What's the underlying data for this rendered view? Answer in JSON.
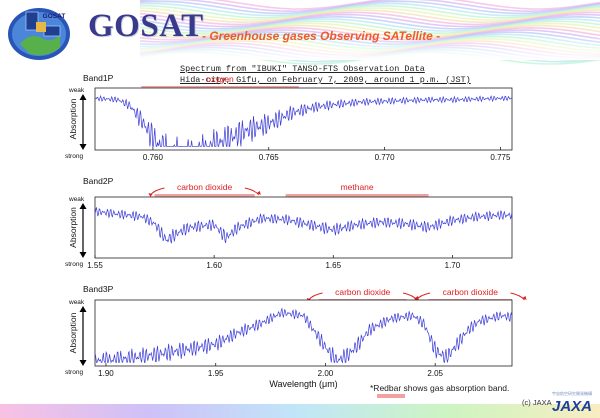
{
  "header": {
    "title": "GOSAT",
    "subtitle": "- Greenhouse gases Observing SATellite -",
    "badge_text": "GOSAT",
    "observation_line1": "Spectrum from \"IBUKI\" TANSO-FTS Observation Data",
    "observation_line2": "Hida-city, Gifu, on February 7, 2009, around 1 p.m. (JST)"
  },
  "footer": {
    "note": "*Redbar shows gas absorption band.",
    "copyright": "(c) JAXA",
    "logo": "JAXA",
    "logo_caption": "宇宙航空研究開発機構"
  },
  "colors": {
    "spectrum": "#3b3bd6",
    "absorption_bar": "#f2a0a0",
    "annotation": "#e02020",
    "title": "#3a3a8c",
    "subtitle": "#f05a28"
  },
  "chart_data": [
    {
      "type": "line",
      "title": "Band1P",
      "ylabel": "Absorption",
      "y_top_label": "weak",
      "y_bottom_label": "strong",
      "xlim": [
        0.7575,
        0.7755
      ],
      "x_ticks": [
        "0.760",
        "0.765",
        "0.770",
        "0.775"
      ],
      "x_tick_values": [
        0.76,
        0.765,
        0.77,
        0.775
      ],
      "grid": false,
      "absorption_bands": [
        {
          "label": "oxygen",
          "range": [
            0.7595,
            0.7663
          ],
          "arrows": false
        }
      ],
      "series": [
        {
          "x": [
            0.7575,
            0.7585,
            0.759,
            0.7595,
            0.76,
            0.7605,
            0.761,
            0.7615,
            0.762,
            0.7625,
            0.763,
            0.764,
            0.765,
            0.766,
            0.767,
            0.768,
            0.769,
            0.77,
            0.771,
            0.772,
            0.773,
            0.774,
            0.775,
            0.7755
          ],
          "values": [
            0.9,
            0.88,
            0.8,
            0.6,
            0.35,
            0.15,
            0.05,
            0.03,
            0.08,
            0.2,
            0.3,
            0.45,
            0.55,
            0.7,
            0.78,
            0.82,
            0.85,
            0.86,
            0.87,
            0.88,
            0.88,
            0.89,
            0.9,
            0.9
          ]
        }
      ]
    },
    {
      "type": "line",
      "title": "Band2P",
      "ylabel": "Absorption",
      "y_top_label": "weak",
      "y_bottom_label": "strong",
      "xlim": [
        1.55,
        1.725
      ],
      "x_ticks": [
        "1.55",
        "1.60",
        "1.65",
        "1.70"
      ],
      "x_tick_values": [
        1.55,
        1.6,
        1.65,
        1.7
      ],
      "grid": false,
      "absorption_bands": [
        {
          "label": "carbon dioxide",
          "range": [
            1.575,
            1.617
          ],
          "arrows": true
        },
        {
          "label": "methane",
          "range": [
            1.63,
            1.69
          ],
          "arrows": false
        }
      ],
      "series": [
        {
          "x": [
            1.55,
            1.56,
            1.57,
            1.575,
            1.58,
            1.585,
            1.59,
            1.6,
            1.605,
            1.61,
            1.62,
            1.63,
            1.64,
            1.65,
            1.66,
            1.67,
            1.68,
            1.69,
            1.7,
            1.71,
            1.72,
            1.725
          ],
          "values": [
            0.85,
            0.8,
            0.75,
            0.62,
            0.3,
            0.45,
            0.55,
            0.6,
            0.35,
            0.55,
            0.72,
            0.7,
            0.6,
            0.5,
            0.6,
            0.65,
            0.62,
            0.55,
            0.68,
            0.75,
            0.78,
            0.78
          ]
        }
      ]
    },
    {
      "type": "line",
      "title": "Band3P",
      "ylabel": "Absorption",
      "y_top_label": "weak",
      "y_bottom_label": "strong",
      "xlabel": "Wavelength (μm)",
      "xlim": [
        1.895,
        2.085
      ],
      "x_ticks": [
        "1.90",
        "1.95",
        "2.00",
        "2.05"
      ],
      "x_tick_values": [
        1.9,
        1.95,
        2.0,
        2.05
      ],
      "grid": false,
      "absorption_bands": [
        {
          "label": "carbon dioxide",
          "range": [
            1.997,
            2.037
          ],
          "arrows": true
        },
        {
          "label": "carbon dioxide",
          "range": [
            2.047,
            2.085
          ],
          "arrows": true
        }
      ],
      "series": [
        {
          "x": [
            1.895,
            1.91,
            1.925,
            1.94,
            1.95,
            1.96,
            1.97,
            1.98,
            1.99,
            2.0,
            2.005,
            2.01,
            2.015,
            2.02,
            2.03,
            2.04,
            2.045,
            2.05,
            2.055,
            2.06,
            2.065,
            2.07,
            2.08,
            2.085
          ],
          "values": [
            0.05,
            0.1,
            0.18,
            0.28,
            0.35,
            0.55,
            0.7,
            0.9,
            0.85,
            0.3,
            0.05,
            0.15,
            0.35,
            0.6,
            0.8,
            0.85,
            0.7,
            0.25,
            0.1,
            0.35,
            0.6,
            0.75,
            0.85,
            0.82
          ]
        }
      ]
    }
  ]
}
